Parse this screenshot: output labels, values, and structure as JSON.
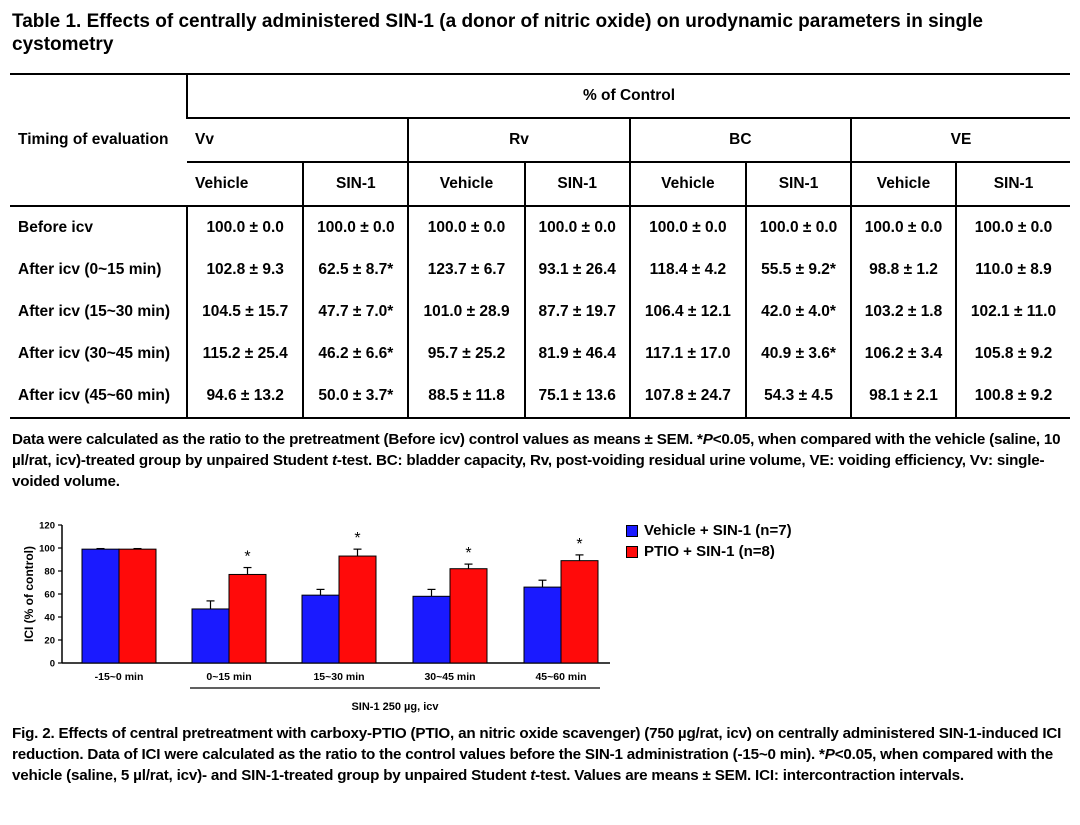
{
  "table1": {
    "title": "Table 1. Effects of centrally administered SIN-1 (a donor of nitric oxide) on urodynamic parameters in single cystometry",
    "row_header": "Timing of evaluation",
    "super_header": "% of Control",
    "groups": [
      "Vv",
      "Rv",
      "BC",
      "VE"
    ],
    "subheaders": [
      "Vehicle",
      "SIN-1",
      "Vehicle",
      "SIN-1",
      "Vehicle",
      "SIN-1",
      "Vehicle",
      "SIN-1"
    ],
    "rows": [
      {
        "label": "Before icv",
        "cells": [
          "100.0 ± 0.0",
          "100.0 ± 0.0",
          "100.0 ± 0.0",
          "100.0 ± 0.0",
          "100.0 ± 0.0",
          "100.0 ± 0.0",
          "100.0 ± 0.0",
          "100.0 ± 0.0"
        ]
      },
      {
        "label": "After icv (0~15 min)",
        "cells": [
          "102.8 ± 9.3",
          "62.5 ± 8.7*",
          "123.7 ± 6.7",
          "93.1 ± 26.4",
          "118.4 ± 4.2",
          "55.5 ± 9.2*",
          "98.8 ± 1.2",
          "110.0 ± 8.9"
        ]
      },
      {
        "label": "After icv (15~30 min)",
        "cells": [
          "104.5 ± 15.7",
          "47.7 ± 7.0*",
          "101.0 ± 28.9",
          "87.7 ± 19.7",
          "106.4 ± 12.1",
          "42.0 ± 4.0*",
          "103.2 ± 1.8",
          "102.1 ± 11.0"
        ]
      },
      {
        "label": "After icv (30~45 min)",
        "cells": [
          "115.2 ± 25.4",
          "46.2 ± 6.6*",
          "95.7 ± 25.2",
          "81.9 ± 46.4",
          "117.1 ± 17.0",
          "40.9 ± 3.6*",
          "106.2 ± 3.4",
          "105.8 ± 9.2"
        ]
      },
      {
        "label": "After icv (45~60 min)",
        "cells": [
          "94.6 ± 13.2",
          "50.0 ± 3.7*",
          "88.5 ± 11.8",
          "75.1 ± 13.6",
          "107.8 ± 24.7",
          "54.3 ± 4.5",
          "98.1 ± 2.1",
          "100.8 ± 9.2"
        ]
      }
    ],
    "note": "Data were calculated as the ratio to the pretreatment (Before icv) control values as means ± SEM.  *P<0.05, when compared with the vehicle (saline, 10 µl/rat, icv)-treated group by unpaired Student t-test.  BC: bladder capacity, Rv, post-voiding residual urine volume, VE: voiding efficiency, Vv: single-voided volume."
  },
  "chart_data": {
    "type": "bar",
    "categories": [
      "-15~0 min",
      "0~15 min",
      "15~30 min",
      "30~45 min",
      "45~60 min"
    ],
    "series": [
      {
        "name": "Vehicle + SIN-1 (n=7)",
        "color": "#1a1aff",
        "values": [
          99,
          47,
          59,
          58,
          66
        ],
        "errors": [
          0.5,
          7,
          5,
          6,
          6
        ]
      },
      {
        "name": "PTIO + SIN-1 (n=8)",
        "color": "#ff0a0a",
        "values": [
          99,
          77,
          93,
          82,
          89
        ],
        "errors": [
          0.5,
          6,
          6,
          4,
          5
        ]
      }
    ],
    "significance": [
      [
        false,
        false
      ],
      [
        false,
        true
      ],
      [
        false,
        true
      ],
      [
        false,
        true
      ],
      [
        false,
        true
      ]
    ],
    "significance_mark": "*",
    "ylabel": "ICI (% of control)",
    "ylim": [
      0,
      120
    ],
    "yticks": [
      0,
      20,
      40,
      60,
      80,
      100,
      120
    ],
    "bracket_label": "SIN-1 250 µg, icv",
    "bracket_categories": [
      "0~15 min",
      "15~30 min",
      "30~45 min",
      "45~60 min"
    ],
    "legend_position": "top-right",
    "grid": false
  },
  "figure2": {
    "caption": "Fig. 2. Effects of central pretreatment with carboxy-PTIO (PTIO, an nitric oxide scavenger) (750 µg/rat, icv) on centrally administered SIN-1-induced ICI reduction.  Data of ICI were calculated as the ratio to the control values before the SIN-1 administration (-15~0 min). *P<0.05, when compared with the vehicle (saline, 5 µl/rat, icv)- and SIN-1-treated group by unpaired Student t-test.  Values are means ± SEM.  ICI: intercontraction intervals."
  }
}
